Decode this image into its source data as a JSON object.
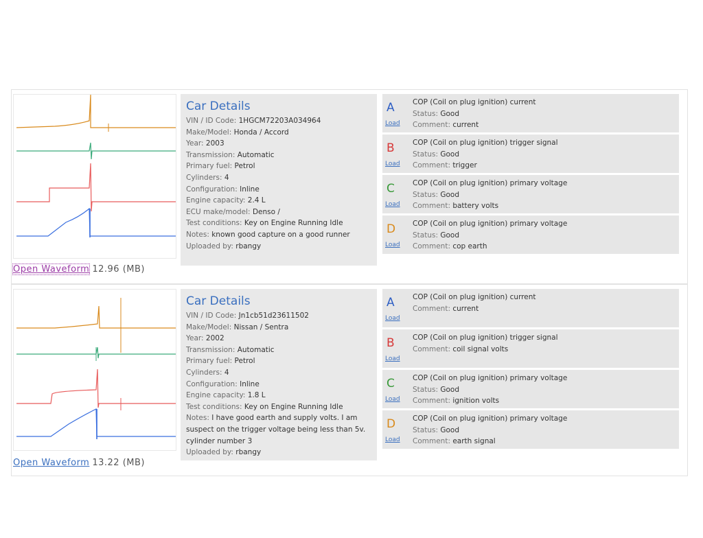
{
  "records": [
    {
      "open_label": "Open Waveform",
      "size_label": "12.96 (MB)",
      "details_title": "Car Details",
      "details": [
        {
          "k": "VIN / ID Code: ",
          "v": "1HGCM72203A034964"
        },
        {
          "k": "Make/Model: ",
          "v": "Honda / Accord"
        },
        {
          "k": "Year: ",
          "v": "2003"
        },
        {
          "k": "Transmission: ",
          "v": "Automatic"
        },
        {
          "k": "Primary fuel: ",
          "v": "Petrol"
        },
        {
          "k": "Cylinders: ",
          "v": "4"
        },
        {
          "k": "Configuration: ",
          "v": "Inline"
        },
        {
          "k": "Engine capacity: ",
          "v": "2.4 L"
        },
        {
          "k": "ECU make/model: ",
          "v": "Denso /"
        },
        {
          "k": "Test conditions: ",
          "v": "Key on Engine Running Idle"
        },
        {
          "k": "Notes: ",
          "v": "known good capture on a good runner"
        },
        {
          "k": "Uploaded by: ",
          "v": "rbangy"
        }
      ],
      "channels": [
        {
          "letter": "A",
          "color": "#2f5fc4",
          "load": "Load",
          "title": "COP (Coil on plug ignition) current",
          "lines": [
            {
              "k": "Status: ",
              "v": "Good"
            },
            {
              "k": "Comment: ",
              "v": "current"
            }
          ]
        },
        {
          "letter": "B",
          "color": "#d73a3a",
          "load": "Load",
          "title": "COP (Coil on plug ignition) trigger signal",
          "lines": [
            {
              "k": "Status: ",
              "v": "Good"
            },
            {
              "k": "Comment: ",
              "v": "trigger"
            }
          ]
        },
        {
          "letter": "C",
          "color": "#3a9a3a",
          "load": "Load",
          "title": "COP (Coil on plug ignition) primary voltage",
          "lines": [
            {
              "k": "Status: ",
              "v": "Good"
            },
            {
              "k": "Comment: ",
              "v": "battery volts"
            }
          ]
        },
        {
          "letter": "D",
          "color": "#d98a1c",
          "load": "Load",
          "title": "COP (Coil on plug ignition) primary voltage",
          "lines": [
            {
              "k": "Status: ",
              "v": "Good"
            },
            {
              "k": "Comment: ",
              "v": "cop earth"
            }
          ]
        }
      ]
    },
    {
      "open_label": "Open Waveform",
      "size_label": "13.22 (MB)",
      "details_title": "Car Details",
      "details": [
        {
          "k": "VIN / ID Code: ",
          "v": "Jn1cb51d23611502"
        },
        {
          "k": "Make/Model: ",
          "v": "Nissan / Sentra"
        },
        {
          "k": "Year: ",
          "v": "2002"
        },
        {
          "k": "Transmission: ",
          "v": "Automatic"
        },
        {
          "k": "Primary fuel: ",
          "v": "Petrol"
        },
        {
          "k": "Cylinders: ",
          "v": "4"
        },
        {
          "k": "Configuration: ",
          "v": "Inline"
        },
        {
          "k": "Engine capacity: ",
          "v": "1.8 L"
        },
        {
          "k": "Test conditions: ",
          "v": "Key on Engine Running Idle"
        },
        {
          "k": "Notes: ",
          "v": "I have good earth and supply volts. I am suspect on the trigger voltage being less than 5v. cylinder number 3"
        },
        {
          "k": "Uploaded by: ",
          "v": "rbangy"
        }
      ],
      "channels": [
        {
          "letter": "A",
          "color": "#2f5fc4",
          "load": "Load",
          "title": "COP (Coil on plug ignition) current",
          "lines": [
            {
              "k": "Comment: ",
              "v": "current"
            }
          ]
        },
        {
          "letter": "B",
          "color": "#d73a3a",
          "load": "Load",
          "title": "COP (Coil on plug ignition) trigger signal",
          "lines": [
            {
              "k": "Comment: ",
              "v": "coil signal volts"
            }
          ]
        },
        {
          "letter": "C",
          "color": "#3a9a3a",
          "load": "Load",
          "title": "COP (Coil on plug ignition) primary voltage",
          "lines": [
            {
              "k": "Status: ",
              "v": "Good"
            },
            {
              "k": "Comment: ",
              "v": "ignition volts"
            }
          ]
        },
        {
          "letter": "D",
          "color": "#d98a1c",
          "load": "Load",
          "title": "COP (Coil on plug ignition) primary voltage",
          "lines": [
            {
              "k": "Status: ",
              "v": "Good"
            },
            {
              "k": "Comment: ",
              "v": "earth signal"
            }
          ]
        }
      ]
    }
  ]
}
